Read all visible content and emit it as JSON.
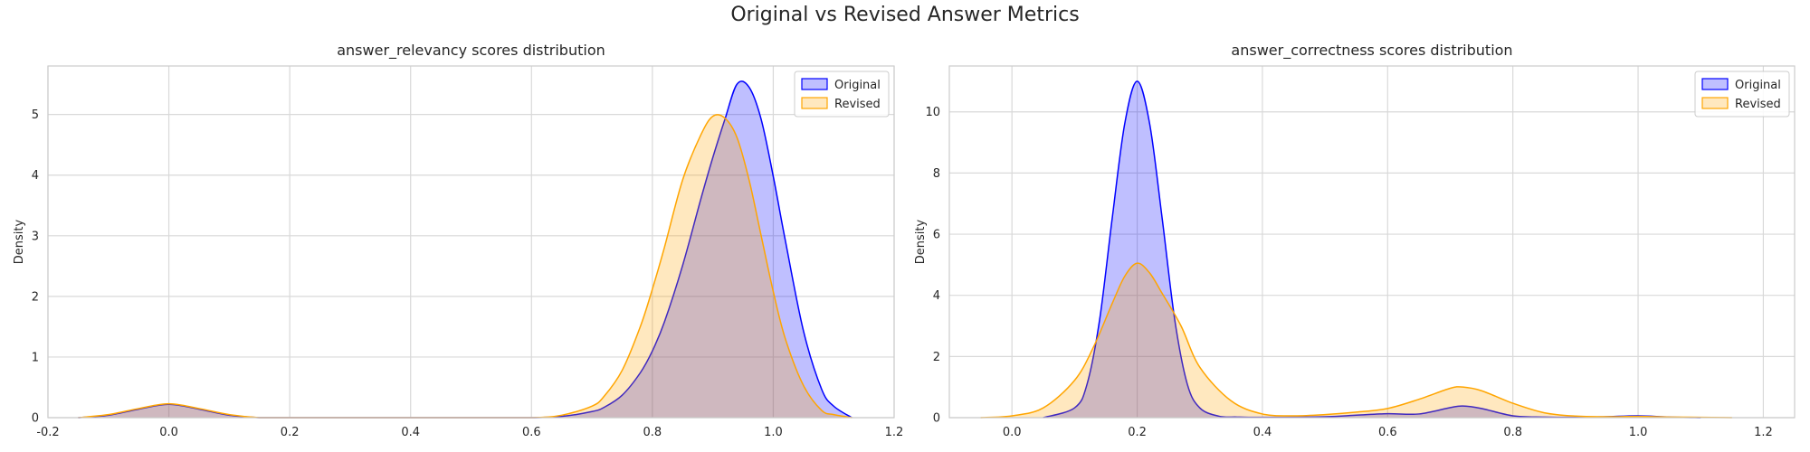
{
  "figure": {
    "suptitle": "Original vs Revised Answer Metrics"
  },
  "chart_data": [
    {
      "type": "area",
      "title": "answer_relevancy scores distribution",
      "xlabel": "",
      "ylabel": "Density",
      "xlim": [
        -0.2,
        1.2
      ],
      "ylim": [
        0,
        5.8
      ],
      "xticks": [
        -0.2,
        0.0,
        0.2,
        0.4,
        0.6,
        0.8,
        1.0,
        1.2
      ],
      "xtick_labels": [
        "-0.2",
        "0.0",
        "0.2",
        "0.4",
        "0.6",
        "0.8",
        "1.0",
        "1.2"
      ],
      "yticks": [
        0,
        1,
        2,
        3,
        4,
        5
      ],
      "ytick_labels": [
        "0",
        "1",
        "2",
        "3",
        "4",
        "5"
      ],
      "grid": true,
      "legend_position": "top-right",
      "series": [
        {
          "name": "Original",
          "color": "#0000ff",
          "fill": "rgba(0,0,255,0.25)",
          "x": [
            -0.15,
            -0.1,
            -0.05,
            0.0,
            0.05,
            0.1,
            0.15,
            0.2,
            0.3,
            0.4,
            0.5,
            0.6,
            0.65,
            0.7,
            0.72,
            0.75,
            0.78,
            0.8,
            0.82,
            0.85,
            0.88,
            0.9,
            0.92,
            0.94,
            0.96,
            0.98,
            1.0,
            1.02,
            1.05,
            1.08,
            1.1,
            1.13
          ],
          "y": [
            0.0,
            0.04,
            0.14,
            0.22,
            0.14,
            0.04,
            0.0,
            0.0,
            0.0,
            0.0,
            0.0,
            0.0,
            0.02,
            0.1,
            0.17,
            0.37,
            0.74,
            1.1,
            1.58,
            2.51,
            3.6,
            4.29,
            4.92,
            5.5,
            5.45,
            4.92,
            3.98,
            2.92,
            1.43,
            0.47,
            0.19,
            0.0
          ]
        },
        {
          "name": "Revised",
          "color": "#ffa500",
          "fill": "rgba(255,165,0,0.25)",
          "x": [
            -0.15,
            -0.1,
            -0.05,
            0.0,
            0.05,
            0.1,
            0.15,
            0.2,
            0.3,
            0.4,
            0.5,
            0.6,
            0.65,
            0.7,
            0.72,
            0.75,
            0.78,
            0.8,
            0.82,
            0.85,
            0.88,
            0.9,
            0.92,
            0.94,
            0.96,
            0.98,
            1.0,
            1.02,
            1.05,
            1.08,
            1.1,
            1.13
          ],
          "y": [
            0.0,
            0.05,
            0.15,
            0.23,
            0.15,
            0.05,
            0.0,
            0.0,
            0.0,
            0.0,
            0.0,
            0.0,
            0.04,
            0.19,
            0.35,
            0.78,
            1.5,
            2.12,
            2.81,
            3.92,
            4.66,
            4.97,
            4.94,
            4.62,
            3.92,
            3.0,
            2.08,
            1.3,
            0.53,
            0.12,
            0.05,
            0.0
          ]
        }
      ]
    },
    {
      "type": "area",
      "title": "answer_correctness scores distribution",
      "xlabel": "",
      "ylabel": "Density",
      "xlim": [
        -0.1,
        1.25
      ],
      "ylim": [
        0,
        11.5
      ],
      "xticks": [
        0.0,
        0.2,
        0.4,
        0.6,
        0.8,
        1.0,
        1.2
      ],
      "xtick_labels": [
        "0.0",
        "0.2",
        "0.4",
        "0.6",
        "0.8",
        "1.0",
        "1.2"
      ],
      "yticks": [
        0,
        2,
        4,
        6,
        8,
        10
      ],
      "ytick_labels": [
        "0",
        "2",
        "4",
        "6",
        "8",
        "10"
      ],
      "grid": true,
      "legend_position": "top-right",
      "series": [
        {
          "name": "Original",
          "color": "#0000ff",
          "fill": "rgba(0,0,255,0.25)",
          "x": [
            0.05,
            0.1,
            0.12,
            0.14,
            0.16,
            0.18,
            0.2,
            0.22,
            0.24,
            0.26,
            0.28,
            0.3,
            0.33,
            0.36,
            0.4,
            0.5,
            0.55,
            0.6,
            0.65,
            0.7,
            0.72,
            0.75,
            0.8,
            0.85,
            0.9,
            0.95,
            1.0,
            1.05,
            1.1
          ],
          "y": [
            0.0,
            0.32,
            1.1,
            3.2,
            6.5,
            9.6,
            11.0,
            9.6,
            6.5,
            3.2,
            1.1,
            0.32,
            0.05,
            0.02,
            0.01,
            0.03,
            0.08,
            0.13,
            0.12,
            0.33,
            0.38,
            0.3,
            0.06,
            0.02,
            0.01,
            0.03,
            0.06,
            0.02,
            0.0
          ]
        },
        {
          "name": "Revised",
          "color": "#ffa500",
          "fill": "rgba(255,165,0,0.25)",
          "x": [
            -0.05,
            0.0,
            0.05,
            0.1,
            0.13,
            0.16,
            0.18,
            0.2,
            0.22,
            0.24,
            0.27,
            0.3,
            0.35,
            0.4,
            0.45,
            0.5,
            0.55,
            0.6,
            0.65,
            0.7,
            0.72,
            0.75,
            0.8,
            0.85,
            0.9,
            0.95,
            1.0,
            1.05,
            1.1,
            1.15
          ],
          "y": [
            0.0,
            0.06,
            0.32,
            1.22,
            2.3,
            3.73,
            4.62,
            5.05,
            4.73,
            4.06,
            3.0,
            1.65,
            0.55,
            0.12,
            0.06,
            0.1,
            0.18,
            0.3,
            0.6,
            0.96,
            1.0,
            0.88,
            0.47,
            0.16,
            0.05,
            0.03,
            0.04,
            0.02,
            0.01,
            0.0
          ]
        }
      ]
    }
  ]
}
